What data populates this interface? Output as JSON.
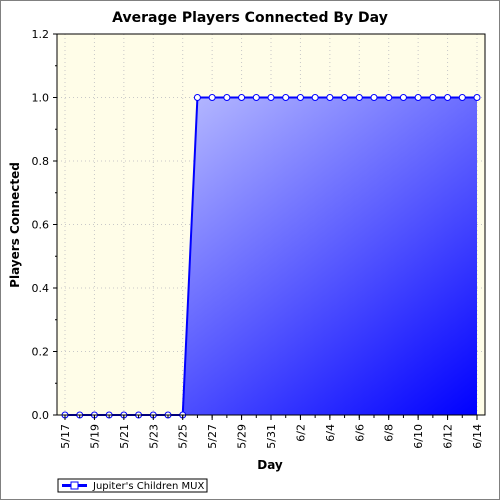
{
  "chart_data": {
    "type": "area",
    "title": "Average Players Connected By Day",
    "xlabel": "Day",
    "ylabel": "Players Connected",
    "ylim": [
      0,
      1.2
    ],
    "yticks": [
      "0.0",
      "0.2",
      "0.4",
      "0.6",
      "0.8",
      "1.0",
      "1.2"
    ],
    "x": [
      "5/17",
      "5/18",
      "5/19",
      "5/20",
      "5/21",
      "5/22",
      "5/23",
      "5/24",
      "5/25",
      "5/26",
      "5/27",
      "5/28",
      "5/29",
      "5/30",
      "5/31",
      "6/1",
      "6/2",
      "6/3",
      "6/4",
      "6/5",
      "6/6",
      "6/7",
      "6/8",
      "6/9",
      "6/10",
      "6/11",
      "6/12",
      "6/13",
      "6/14"
    ],
    "xtick_labels": [
      "5/17",
      "5/19",
      "5/21",
      "5/23",
      "5/25",
      "5/27",
      "5/29",
      "5/31",
      "6/2",
      "6/4",
      "6/6",
      "6/8",
      "6/10",
      "6/12",
      "6/14"
    ],
    "series": [
      {
        "name": "Jupiter's Children MUX",
        "values": [
          0,
          0,
          0,
          0,
          0,
          0,
          0,
          0,
          0,
          1,
          1,
          1,
          1,
          1,
          1,
          1,
          1,
          1,
          1,
          1,
          1,
          1,
          1,
          1,
          1,
          1,
          1,
          1,
          1
        ]
      }
    ],
    "grid": true,
    "legend_position": "bottom-left",
    "colors": {
      "plot_background": "#fffde8",
      "line": "#0000ff",
      "fill_start": "#d4d8ff",
      "fill_end": "#0000ff",
      "grid": "#c8c8c8"
    }
  }
}
